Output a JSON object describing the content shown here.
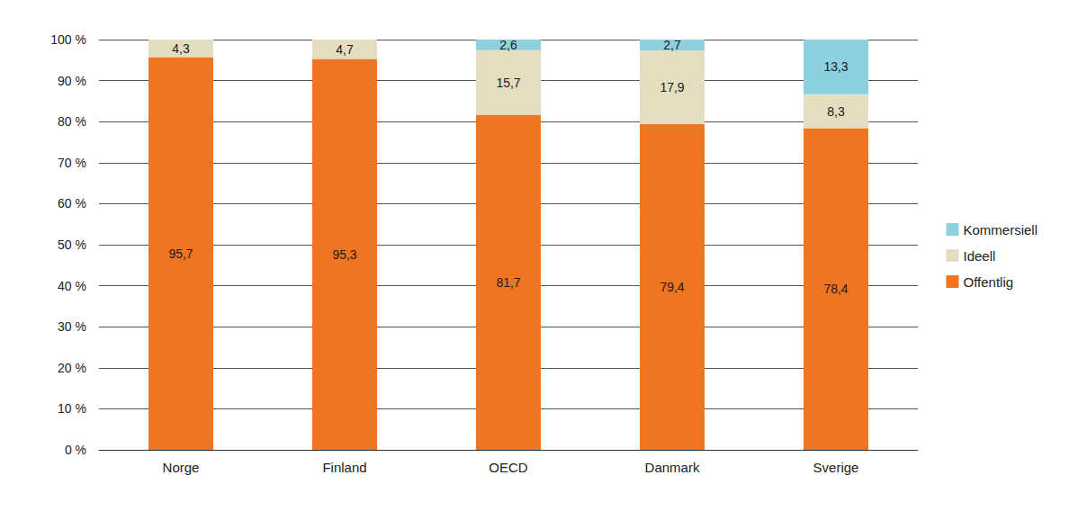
{
  "chart_data": {
    "type": "bar",
    "stacked": true,
    "data_labels": true,
    "grid": true,
    "legend": "right",
    "categories": [
      "Norge",
      "Finland",
      "OECD",
      "Danmark",
      "Sverige"
    ],
    "ylim": [
      0,
      100
    ],
    "yticks": [
      {
        "value": 0,
        "label": "0 %"
      },
      {
        "value": 10,
        "label": "10 %"
      },
      {
        "value": 20,
        "label": "20 %"
      },
      {
        "value": 30,
        "label": "30 %"
      },
      {
        "value": 40,
        "label": "40 %"
      },
      {
        "value": 50,
        "label": "50 %"
      },
      {
        "value": 60,
        "label": "60 %"
      },
      {
        "value": 70,
        "label": "70 %"
      },
      {
        "value": 80,
        "label": "80 %"
      },
      {
        "value": 90,
        "label": "90 %"
      },
      {
        "value": 100,
        "label": "100 %"
      }
    ],
    "series": [
      {
        "name": "Offentlig",
        "color": "#ee7623",
        "values": [
          95.7,
          95.3,
          81.7,
          79.4,
          78.4
        ],
        "value_labels": [
          "95,7",
          "95,3",
          "81,7",
          "79,4",
          "78,4"
        ]
      },
      {
        "name": "Ideell",
        "color": "#e4dec0",
        "values": [
          4.3,
          4.7,
          15.7,
          17.9,
          8.3
        ],
        "value_labels": [
          "4,3",
          "4,7",
          "15,7",
          "17,9",
          "8,3"
        ]
      },
      {
        "name": "Kommersiell",
        "color": "#8dd0de",
        "values": [
          null,
          null,
          2.6,
          2.7,
          13.3
        ],
        "value_labels": [
          null,
          null,
          "2,6",
          "2,7",
          "13,3"
        ]
      }
    ]
  }
}
